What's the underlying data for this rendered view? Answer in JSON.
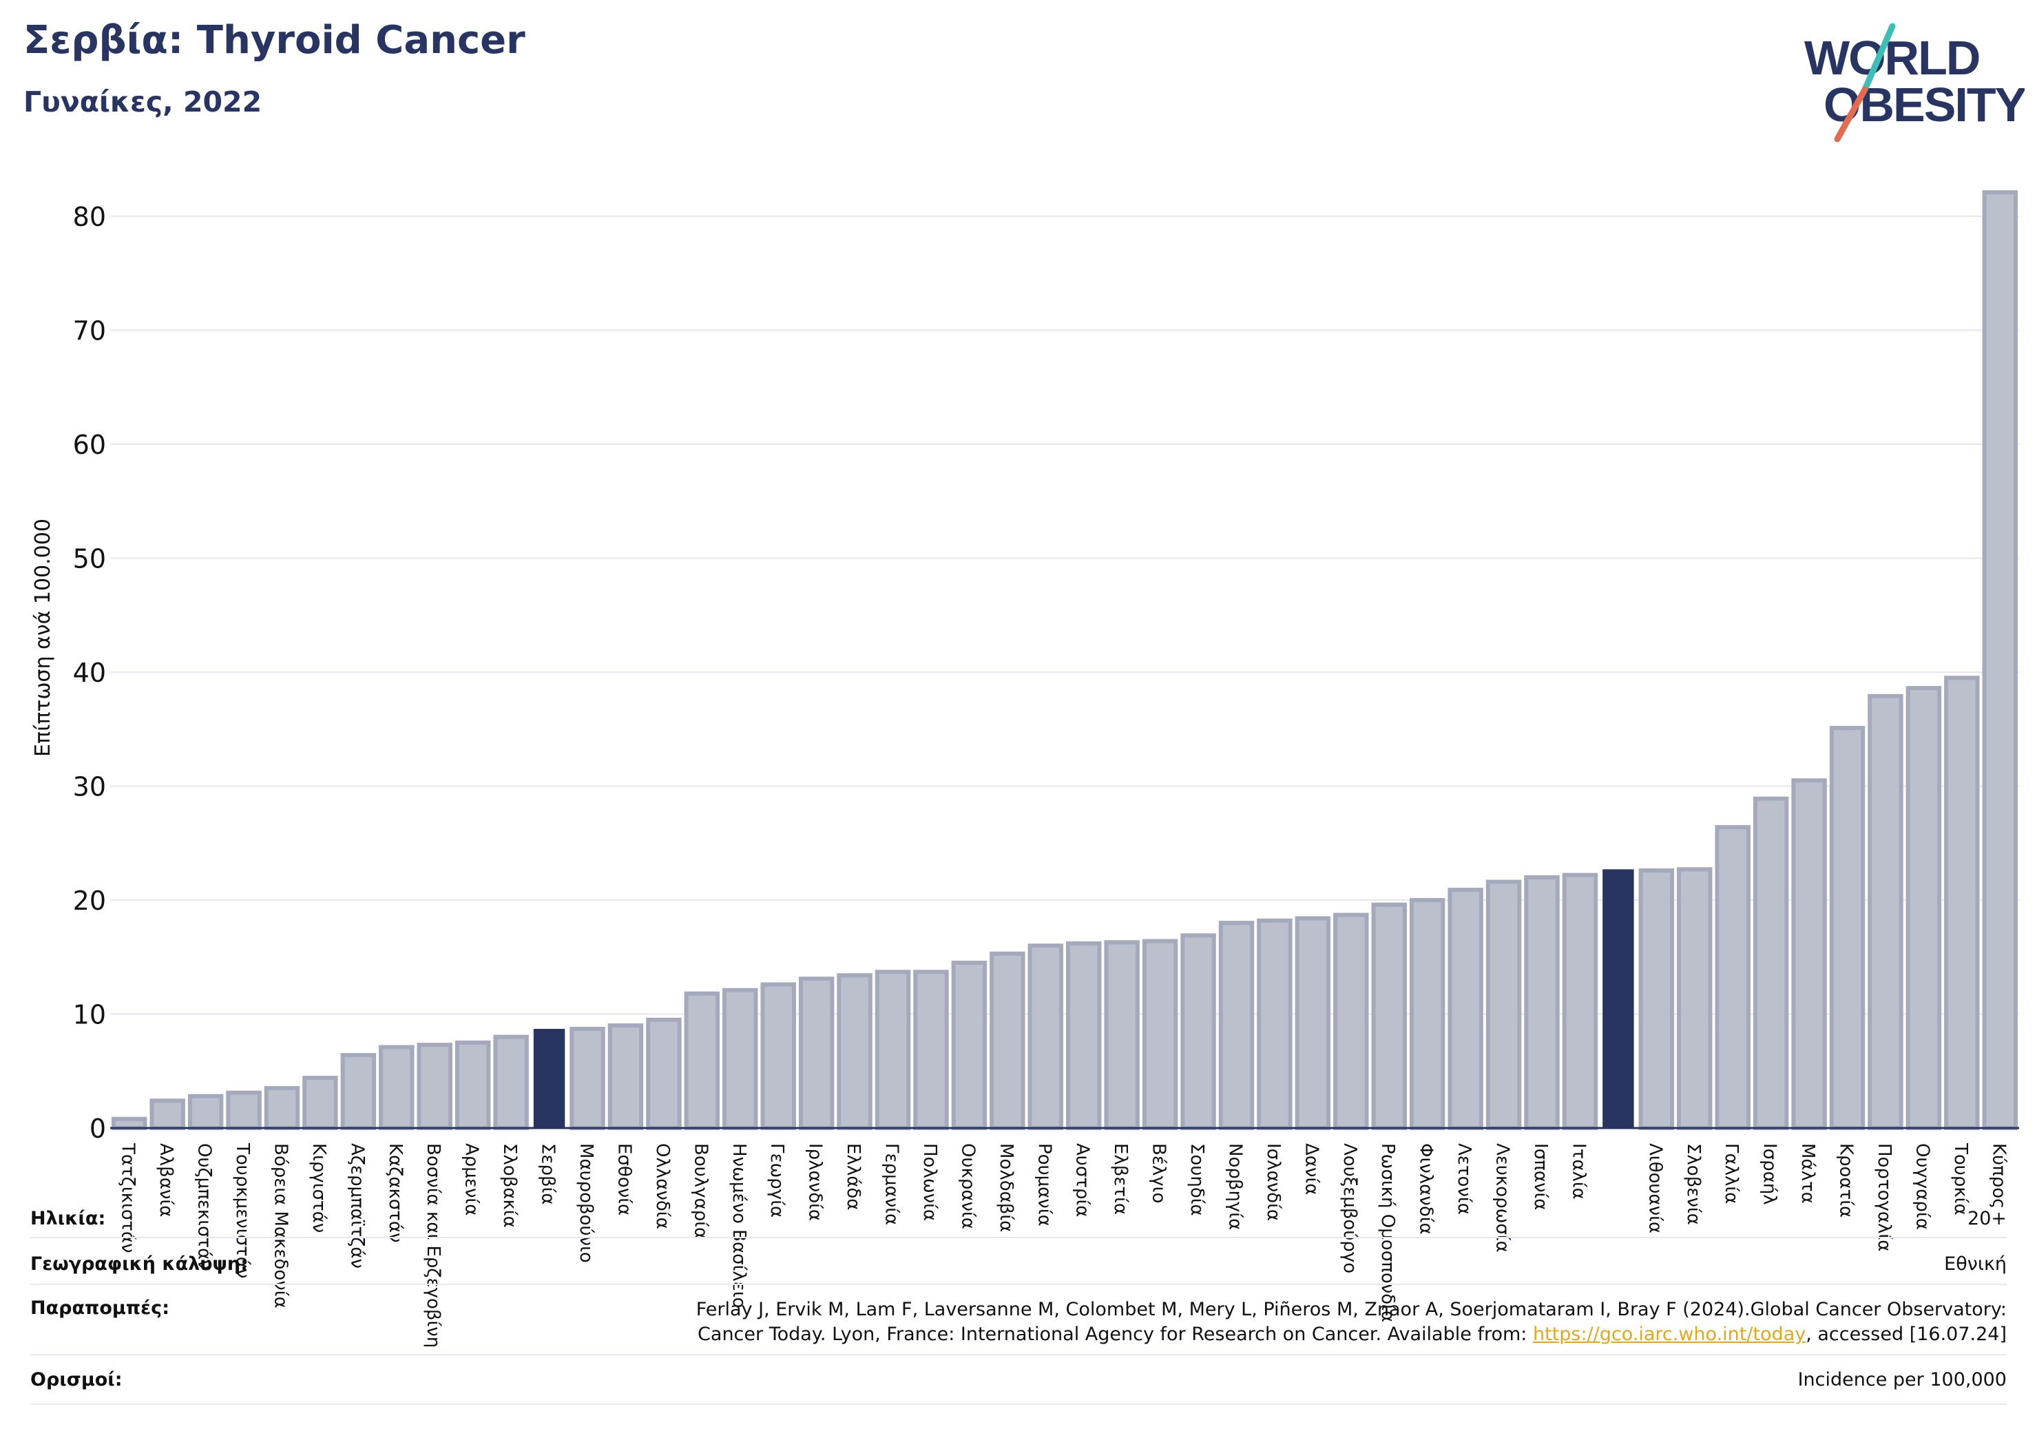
{
  "header": {
    "title": "Σερβία: Thyroid Cancer",
    "subtitle": "Γυναίκες, 2022"
  },
  "logo": {
    "line1": "WORLD",
    "line2": "OBESITY",
    "colors": {
      "text": "#283562",
      "slash_top": "#3bbfb6",
      "slash_bottom": "#e26b50"
    }
  },
  "colors": {
    "bar": "#bcc0cd",
    "bar_border": "#a4a9bb",
    "highlight": "#283562",
    "grid": "#e6e6ee",
    "axis": "#283562"
  },
  "chart_data": {
    "type": "bar",
    "ylabel": "Επίπτωση ανά 100.000",
    "ylim": [
      0,
      84
    ],
    "yticks": [
      0,
      10,
      20,
      30,
      40,
      50,
      60,
      70,
      80
    ],
    "grid": true,
    "categories": [
      "Τατζικιστάν",
      "Αλβανία",
      "Ουζμπεκιστάν",
      "Τουρκμενιστάν",
      "Βόρεια Μακεδονία",
      "Κιργιστάν",
      "Αζερμπαϊτζάν",
      "Καζακστάν",
      "Βοσνία και Ερζεγοβίνη",
      "Αρμενία",
      "Σλοβακία",
      "Σερβία",
      "Μαυροβούνιο",
      "Εσθονία",
      "Ολλανδία",
      "Βουλγαρία",
      "Ηνωμένο Βασίλειο",
      "Γεωργία",
      "Ιρλανδία",
      "Ελλάδα",
      "Γερμανία",
      "Πολωνία",
      "Ουκρανία",
      "Μολδαβία",
      "Ρουμανία",
      "Αυστρία",
      "Ελβετία",
      "Βέλγιο",
      "Σουηδία",
      "Νορβηγία",
      "Ισλανδία",
      "Δανία",
      "Λουξεμβούργο",
      "Ρωσική Ομοσπονδία",
      "Φινλανδία",
      "Λετονία",
      "Λευκορωσία",
      "Ισπανία",
      "Ιταλία",
      "",
      "Λιθουανία",
      "Σλοβενία",
      "Γαλλία",
      "Ισραήλ",
      "Μάλτα",
      "Κροατία",
      "Πορτογαλία",
      "Ουγγαρία",
      "Τουρκία",
      "Κύπρος"
    ],
    "values": [
      0.8,
      2.4,
      2.8,
      3.1,
      3.5,
      4.4,
      6.4,
      7.1,
      7.3,
      7.5,
      8.0,
      8.7,
      8.7,
      9.0,
      9.5,
      11.8,
      12.1,
      12.6,
      13.1,
      13.4,
      13.7,
      13.7,
      14.5,
      15.3,
      16.0,
      16.2,
      16.3,
      16.4,
      16.9,
      18.0,
      18.2,
      18.4,
      18.7,
      19.6,
      20.0,
      20.9,
      21.6,
      22.0,
      22.2,
      22.7,
      22.6,
      22.7,
      26.4,
      28.9,
      30.5,
      35.1,
      37.9,
      38.6,
      39.5,
      82.1
    ],
    "highlighted": [
      11,
      39
    ]
  },
  "info": {
    "age_label": "Ηλικία:",
    "age_value": "20+",
    "coverage_label": "Γεωγραφική κάλυψη:",
    "coverage_value": "Εθνική",
    "refs_label": "Παραπομπές:",
    "refs_line1": "Ferlay J, Ervik M, Lam F, Laversanne M, Colombet M, Mery L, Piñeros M, Znaor A, Soerjomataram I, Bray F (2024).Global Cancer Observatory:",
    "refs_line2_pre": "Cancer Today. Lyon, France: International Agency for Research on Cancer. Available from: ",
    "refs_link": "https://gco.iarc.who.int/today",
    "refs_line2_post": ", accessed [16.07.24]",
    "definitions_label": "Ορισμοί:",
    "definitions_value": "Incidence per 100,000"
  }
}
